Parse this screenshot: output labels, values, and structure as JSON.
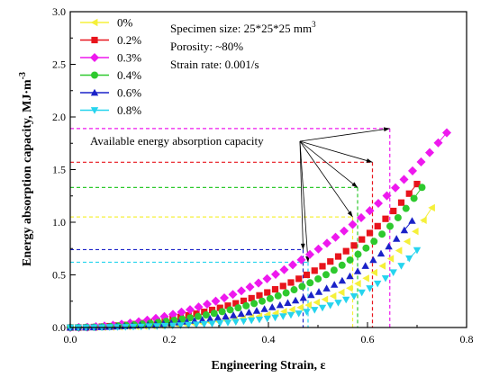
{
  "chart_data": {
    "type": "scatter",
    "xlabel": "Engineering Strain, ε",
    "ylabel": "Energy absorption capacity, MJ·m",
    "ylabel_sup": "-3",
    "xlim": [
      0.0,
      0.8
    ],
    "ylim": [
      0.0,
      3.0
    ],
    "x_ticks": [
      "0.0",
      "0.2",
      "0.4",
      "0.6",
      "0.8"
    ],
    "y_ticks": [
      "0.0",
      "0.5",
      "1.0",
      "1.5",
      "2.0",
      "2.5",
      "3.0"
    ],
    "grid": false,
    "legend_position": "top-left",
    "annotations": {
      "specimen": "Specimen size: 25*25*25 mm",
      "specimen_sup": "3",
      "porosity": "Porosity: ~80%",
      "strain_rate": "Strain rate: 0.001/s",
      "callout": "Available energy absorption capacity"
    },
    "series": [
      {
        "name": "0%",
        "color": "#f5f03a",
        "marker": "triangle-left",
        "curve": {
          "a": 0.6,
          "b": 1.55,
          "k": 3.2
        },
        "x_end": 0.73,
        "limit": {
          "strain": 0.57,
          "energy": 1.05
        }
      },
      {
        "name": "0.2%",
        "color": "#e8141c",
        "marker": "square",
        "curve": {
          "a": 2.0,
          "b": 1.1,
          "k": 2.6
        },
        "x_end": 0.7,
        "limit": {
          "strain": 0.61,
          "energy": 1.57
        }
      },
      {
        "name": "0.3%",
        "color": "#ee18ee",
        "marker": "diamond",
        "curve": {
          "a": 2.9,
          "b": 0.4,
          "k": 1.8
        },
        "x_end": 0.76,
        "limit": {
          "strain": 0.645,
          "energy": 1.89
        }
      },
      {
        "name": "0.4%",
        "color": "#2ec92e",
        "marker": "circle",
        "curve": {
          "a": 1.55,
          "b": 1.3,
          "k": 3.0
        },
        "x_end": 0.71,
        "limit": {
          "strain": 0.58,
          "energy": 1.33
        }
      },
      {
        "name": "0.6%",
        "color": "#1a22c8",
        "marker": "triangle-up",
        "curve": {
          "a": 1.0,
          "b": 1.5,
          "k": 3.0
        },
        "x_end": 0.69,
        "limit": {
          "strain": 0.47,
          "energy": 0.74
        }
      },
      {
        "name": "0.8%",
        "color": "#26d4ee",
        "marker": "triangle-down",
        "curve": {
          "a": 0.4,
          "b": 1.2,
          "k": 3.5
        },
        "x_end": 0.7,
        "limit": {
          "strain": 0.48,
          "energy": 0.62
        }
      }
    ]
  }
}
